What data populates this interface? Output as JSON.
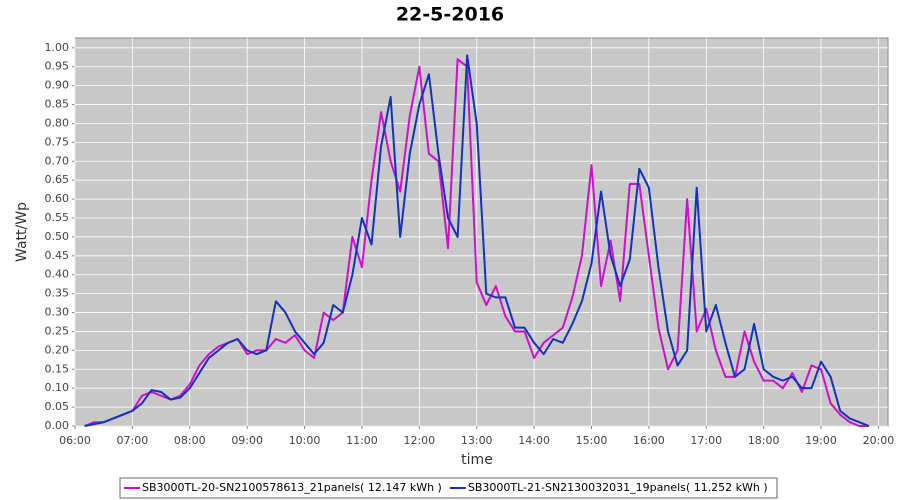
{
  "chart_data": {
    "type": "line",
    "title": "22-5-2016",
    "x_label": "time",
    "y_label": "Watt/Wp",
    "x": [
      "06:10",
      "06:20",
      "06:30",
      "06:40",
      "06:50",
      "07:00",
      "07:10",
      "07:20",
      "07:30",
      "07:40",
      "07:50",
      "08:00",
      "08:10",
      "08:20",
      "08:30",
      "08:40",
      "08:50",
      "09:00",
      "09:10",
      "09:20",
      "09:30",
      "09:40",
      "09:50",
      "10:00",
      "10:10",
      "10:20",
      "10:30",
      "10:40",
      "10:50",
      "11:00",
      "11:10",
      "11:20",
      "11:30",
      "11:40",
      "11:50",
      "12:00",
      "12:10",
      "12:20",
      "12:30",
      "12:40",
      "12:50",
      "13:00",
      "13:10",
      "13:20",
      "13:30",
      "13:40",
      "13:50",
      "14:00",
      "14:10",
      "14:20",
      "14:30",
      "14:40",
      "14:50",
      "15:00",
      "15:10",
      "15:20",
      "15:30",
      "15:40",
      "15:50",
      "16:00",
      "16:10",
      "16:20",
      "16:30",
      "16:40",
      "16:50",
      "17:00",
      "17:10",
      "17:20",
      "17:30",
      "17:40",
      "17:50",
      "18:00",
      "18:10",
      "18:20",
      "18:30",
      "18:40",
      "18:50",
      "19:00",
      "19:10",
      "19:20",
      "19:30",
      "19:40",
      "19:50"
    ],
    "series": [
      {
        "name": "SB3000TL-20-SN2100578613_21panels( 12.147 kWh )",
        "color": "#cc11cc",
        "values": [
          0.0,
          0.01,
          0.01,
          0.02,
          0.03,
          0.04,
          0.08,
          0.09,
          0.08,
          0.07,
          0.08,
          0.11,
          0.16,
          0.19,
          0.21,
          0.22,
          0.23,
          0.19,
          0.2,
          0.2,
          0.23,
          0.22,
          0.24,
          0.2,
          0.18,
          0.3,
          0.28,
          0.3,
          0.5,
          0.42,
          0.65,
          0.83,
          0.7,
          0.62,
          0.82,
          0.95,
          0.72,
          0.7,
          0.47,
          0.97,
          0.95,
          0.38,
          0.32,
          0.37,
          0.29,
          0.25,
          0.25,
          0.18,
          0.22,
          0.24,
          0.26,
          0.34,
          0.45,
          0.69,
          0.37,
          0.49,
          0.33,
          0.64,
          0.64,
          0.45,
          0.26,
          0.15,
          0.2,
          0.6,
          0.25,
          0.31,
          0.2,
          0.13,
          0.13,
          0.25,
          0.17,
          0.12,
          0.12,
          0.1,
          0.14,
          0.09,
          0.16,
          0.15,
          0.06,
          0.03,
          0.01,
          0.0,
          0.0
        ]
      },
      {
        "name": "SB3000TL-21-SN2130032031_19panels( 11.252 kWh )",
        "color": "#1433bb",
        "values": [
          0.0,
          0.005,
          0.01,
          0.02,
          0.03,
          0.04,
          0.06,
          0.095,
          0.09,
          0.07,
          0.075,
          0.1,
          0.14,
          0.18,
          0.2,
          0.22,
          0.23,
          0.2,
          0.19,
          0.2,
          0.33,
          0.3,
          0.25,
          0.22,
          0.19,
          0.22,
          0.32,
          0.3,
          0.4,
          0.55,
          0.48,
          0.74,
          0.87,
          0.5,
          0.72,
          0.85,
          0.93,
          0.72,
          0.55,
          0.5,
          0.98,
          0.8,
          0.35,
          0.34,
          0.34,
          0.26,
          0.26,
          0.22,
          0.19,
          0.23,
          0.22,
          0.27,
          0.33,
          0.43,
          0.62,
          0.45,
          0.37,
          0.44,
          0.68,
          0.63,
          0.42,
          0.25,
          0.16,
          0.2,
          0.63,
          0.25,
          0.32,
          0.22,
          0.13,
          0.15,
          0.27,
          0.15,
          0.13,
          0.12,
          0.13,
          0.1,
          0.1,
          0.17,
          0.13,
          0.04,
          0.02,
          0.01,
          0.0
        ]
      }
    ],
    "xlim": [
      "06:00",
      "20:10"
    ],
    "xticks": [
      "06:00",
      "07:00",
      "08:00",
      "09:00",
      "10:00",
      "11:00",
      "12:00",
      "13:00",
      "14:00",
      "15:00",
      "16:00",
      "17:00",
      "18:00",
      "19:00",
      "20:00"
    ],
    "ylim": [
      0,
      1.026
    ],
    "yticks": [
      {
        "value": 0,
        "label": "0.00"
      },
      0.05,
      {
        "value": 0.1,
        "label": "0.10"
      },
      0.15,
      {
        "value": 0.2,
        "label": "0.20"
      },
      0.25,
      {
        "value": 0.3,
        "label": "0.30"
      },
      0.35,
      {
        "value": 0.4,
        "label": "0.40"
      },
      0.45,
      {
        "value": 0.5,
        "label": "0.50"
      },
      0.55,
      {
        "value": 0.6,
        "label": "0.60"
      },
      0.65,
      {
        "value": 0.7,
        "label": "0.70"
      },
      0.75,
      {
        "value": 0.8,
        "label": "0.80"
      },
      0.85,
      {
        "value": 0.9,
        "label": "0.90"
      },
      0.95,
      {
        "value": 1,
        "label": "1.00"
      }
    ],
    "grid": true,
    "legend": "bottom"
  }
}
